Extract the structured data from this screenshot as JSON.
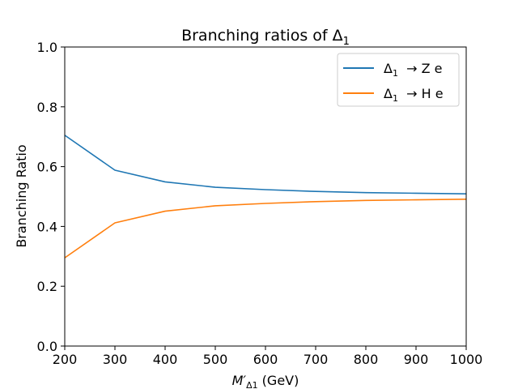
{
  "chart_data": {
    "type": "line",
    "title": {
      "main": "Branching ratios of Δ",
      "sub": "1"
    },
    "xlabel": {
      "main": "M′",
      "sub": "Δ1",
      "tail": " (GeV)"
    },
    "ylabel": "Branching Ratio",
    "xlim": [
      200,
      1000
    ],
    "ylim": [
      0.0,
      1.0
    ],
    "xticks": [
      "200",
      "300",
      "400",
      "500",
      "600",
      "700",
      "800",
      "900",
      "1000"
    ],
    "yticks": [
      "0.0",
      "0.2",
      "0.4",
      "0.6",
      "0.8",
      "1.0"
    ],
    "legend_position": "top-right",
    "grid": false,
    "x": [
      200,
      300,
      400,
      500,
      600,
      700,
      800,
      900,
      1000
    ],
    "series": [
      {
        "symbol": "Δ",
        "sub": "1",
        "decay": " → Z e",
        "color": "#1f77b4",
        "values": [
          0.705,
          0.588,
          0.549,
          0.531,
          0.523,
          0.517,
          0.513,
          0.511,
          0.509
        ]
      },
      {
        "symbol": "Δ",
        "sub": "1",
        "decay": " → H e",
        "color": "#ff7f0e",
        "values": [
          0.295,
          0.412,
          0.451,
          0.469,
          0.477,
          0.483,
          0.487,
          0.489,
          0.491
        ]
      }
    ]
  }
}
